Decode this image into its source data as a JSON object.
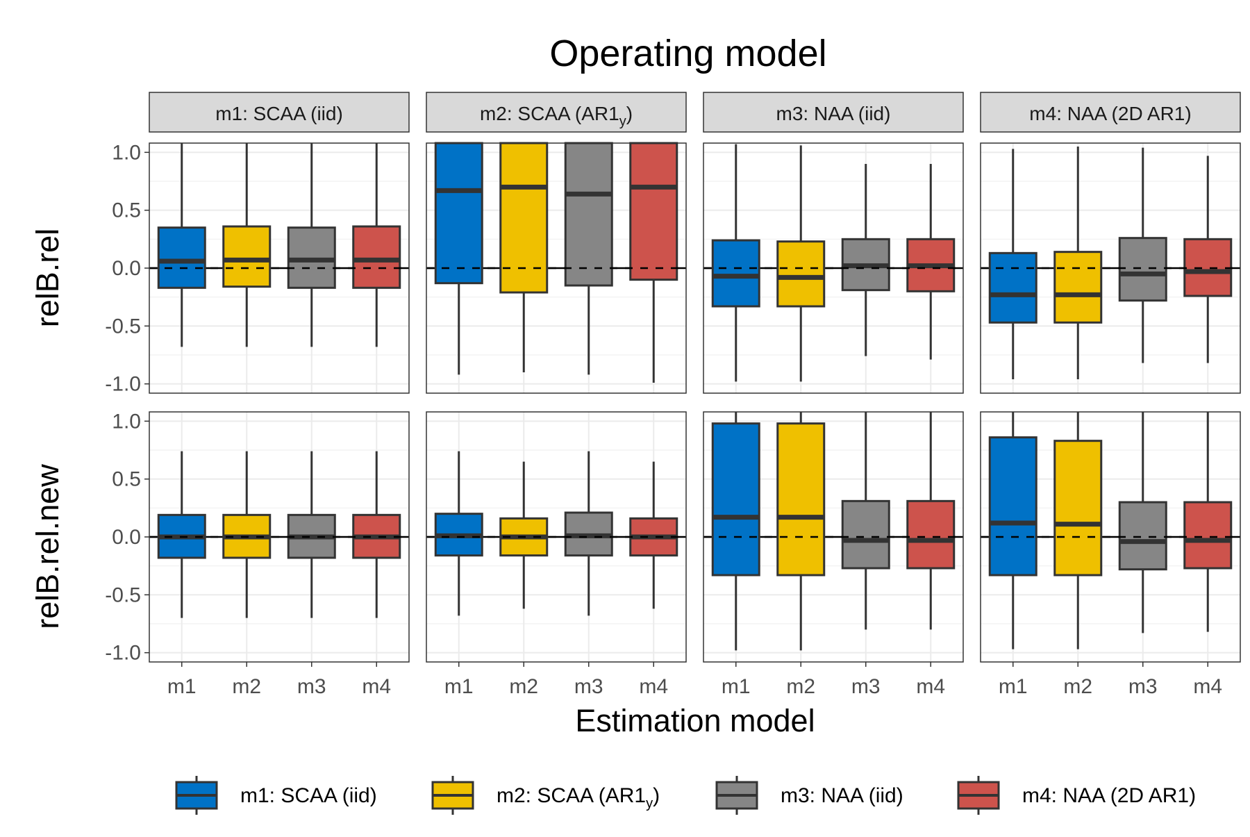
{
  "chart_data": {
    "type": "boxplot",
    "title": "Operating model",
    "xlabel": "Estimation model",
    "row_labels": [
      "relB.rel",
      "relB.rel.new"
    ],
    "facets": [
      {
        "label": "m1:  SCAA  (iid)",
        "sub": "",
        "suffix": ""
      },
      {
        "label": "m2:  SCAA (AR1",
        "sub": "y",
        "suffix": ")"
      },
      {
        "label": "m3:  NAA  (iid)",
        "sub": "",
        "suffix": ""
      },
      {
        "label": "m4:  NAA  (2D AR1)",
        "sub": "",
        "suffix": ""
      }
    ],
    "categories": [
      "m1",
      "m2",
      "m3",
      "m4"
    ],
    "ylim": [
      -1.08,
      1.08
    ],
    "y_ticks": [
      1.0,
      0.5,
      0.0,
      -0.5,
      -1.0
    ],
    "y_tick_labels": [
      "1.0",
      "0.5",
      "0.0",
      "-0.5",
      "-1.0"
    ],
    "reference_line": 0,
    "colors": {
      "m1": "#0072C6",
      "m2": "#EFC000",
      "m3": "#868686",
      "m4": "#CD534C"
    },
    "legend": {
      "position": "bottom",
      "entries": [
        {
          "key": "m1",
          "label": "m1:  SCAA  (iid)",
          "sub": "",
          "suffix": ""
        },
        {
          "key": "m2",
          "label": "m2:  SCAA (AR1",
          "sub": "y",
          "suffix": ")"
        },
        {
          "key": "m3",
          "label": "m3:  NAA  (iid)",
          "sub": "",
          "suffix": ""
        },
        {
          "key": "m4",
          "label": "m4:  NAA  (2D AR1)",
          "sub": "",
          "suffix": ""
        }
      ]
    },
    "panels": [
      [
        [
          {
            "cat": "m1",
            "wlo": -0.68,
            "q1": -0.17,
            "med": 0.06,
            "q3": 0.35,
            "whi": 1.08
          },
          {
            "cat": "m2",
            "wlo": -0.68,
            "q1": -0.16,
            "med": 0.07,
            "q3": 0.36,
            "whi": 1.08
          },
          {
            "cat": "m3",
            "wlo": -0.68,
            "q1": -0.17,
            "med": 0.07,
            "q3": 0.35,
            "whi": 1.08
          },
          {
            "cat": "m4",
            "wlo": -0.68,
            "q1": -0.17,
            "med": 0.07,
            "q3": 0.36,
            "whi": 1.08
          }
        ],
        [
          {
            "cat": "m1",
            "wlo": -0.92,
            "q1": -0.13,
            "med": 0.67,
            "q3": 1.08,
            "whi": 1.08
          },
          {
            "cat": "m2",
            "wlo": -0.9,
            "q1": -0.21,
            "med": 0.7,
            "q3": 1.08,
            "whi": 1.08
          },
          {
            "cat": "m3",
            "wlo": -0.92,
            "q1": -0.15,
            "med": 0.64,
            "q3": 1.08,
            "whi": 1.08
          },
          {
            "cat": "m4",
            "wlo": -0.99,
            "q1": -0.1,
            "med": 0.7,
            "q3": 1.08,
            "whi": 1.08
          }
        ],
        [
          {
            "cat": "m1",
            "wlo": -0.98,
            "q1": -0.33,
            "med": -0.07,
            "q3": 0.24,
            "whi": 1.07
          },
          {
            "cat": "m2",
            "wlo": -0.98,
            "q1": -0.33,
            "med": -0.08,
            "q3": 0.23,
            "whi": 1.06
          },
          {
            "cat": "m3",
            "wlo": -0.76,
            "q1": -0.19,
            "med": 0.02,
            "q3": 0.25,
            "whi": 0.9
          },
          {
            "cat": "m4",
            "wlo": -0.79,
            "q1": -0.2,
            "med": 0.02,
            "q3": 0.25,
            "whi": 0.9
          }
        ],
        [
          {
            "cat": "m1",
            "wlo": -0.96,
            "q1": -0.47,
            "med": -0.23,
            "q3": 0.13,
            "whi": 1.03
          },
          {
            "cat": "m2",
            "wlo": -0.96,
            "q1": -0.47,
            "med": -0.23,
            "q3": 0.14,
            "whi": 1.05
          },
          {
            "cat": "m3",
            "wlo": -0.82,
            "q1": -0.28,
            "med": -0.05,
            "q3": 0.26,
            "whi": 1.04
          },
          {
            "cat": "m4",
            "wlo": -0.82,
            "q1": -0.24,
            "med": -0.03,
            "q3": 0.25,
            "whi": 0.97
          }
        ]
      ],
      [
        [
          {
            "cat": "m1",
            "wlo": -0.7,
            "q1": -0.18,
            "med": 0.0,
            "q3": 0.19,
            "whi": 0.74
          },
          {
            "cat": "m2",
            "wlo": -0.7,
            "q1": -0.18,
            "med": 0.0,
            "q3": 0.19,
            "whi": 0.74
          },
          {
            "cat": "m3",
            "wlo": -0.7,
            "q1": -0.18,
            "med": 0.0,
            "q3": 0.19,
            "whi": 0.74
          },
          {
            "cat": "m4",
            "wlo": -0.7,
            "q1": -0.18,
            "med": 0.0,
            "q3": 0.19,
            "whi": 0.74
          }
        ],
        [
          {
            "cat": "m1",
            "wlo": -0.68,
            "q1": -0.16,
            "med": 0.01,
            "q3": 0.2,
            "whi": 0.74
          },
          {
            "cat": "m2",
            "wlo": -0.62,
            "q1": -0.16,
            "med": 0.0,
            "q3": 0.16,
            "whi": 0.65
          },
          {
            "cat": "m3",
            "wlo": -0.68,
            "q1": -0.16,
            "med": 0.01,
            "q3": 0.21,
            "whi": 0.74
          },
          {
            "cat": "m4",
            "wlo": -0.62,
            "q1": -0.16,
            "med": 0.0,
            "q3": 0.16,
            "whi": 0.65
          }
        ],
        [
          {
            "cat": "m1",
            "wlo": -0.98,
            "q1": -0.33,
            "med": 0.17,
            "q3": 0.98,
            "whi": 1.08
          },
          {
            "cat": "m2",
            "wlo": -0.98,
            "q1": -0.33,
            "med": 0.17,
            "q3": 0.98,
            "whi": 1.08
          },
          {
            "cat": "m3",
            "wlo": -0.8,
            "q1": -0.27,
            "med": -0.03,
            "q3": 0.31,
            "whi": 1.08
          },
          {
            "cat": "m4",
            "wlo": -0.8,
            "q1": -0.27,
            "med": -0.03,
            "q3": 0.31,
            "whi": 1.08
          }
        ],
        [
          {
            "cat": "m1",
            "wlo": -0.97,
            "q1": -0.33,
            "med": 0.12,
            "q3": 0.86,
            "whi": 1.08
          },
          {
            "cat": "m2",
            "wlo": -0.97,
            "q1": -0.33,
            "med": 0.11,
            "q3": 0.83,
            "whi": 1.08
          },
          {
            "cat": "m3",
            "wlo": -0.83,
            "q1": -0.28,
            "med": -0.04,
            "q3": 0.3,
            "whi": 1.08
          },
          {
            "cat": "m4",
            "wlo": -0.82,
            "q1": -0.27,
            "med": -0.03,
            "q3": 0.3,
            "whi": 1.08
          }
        ]
      ]
    ]
  }
}
